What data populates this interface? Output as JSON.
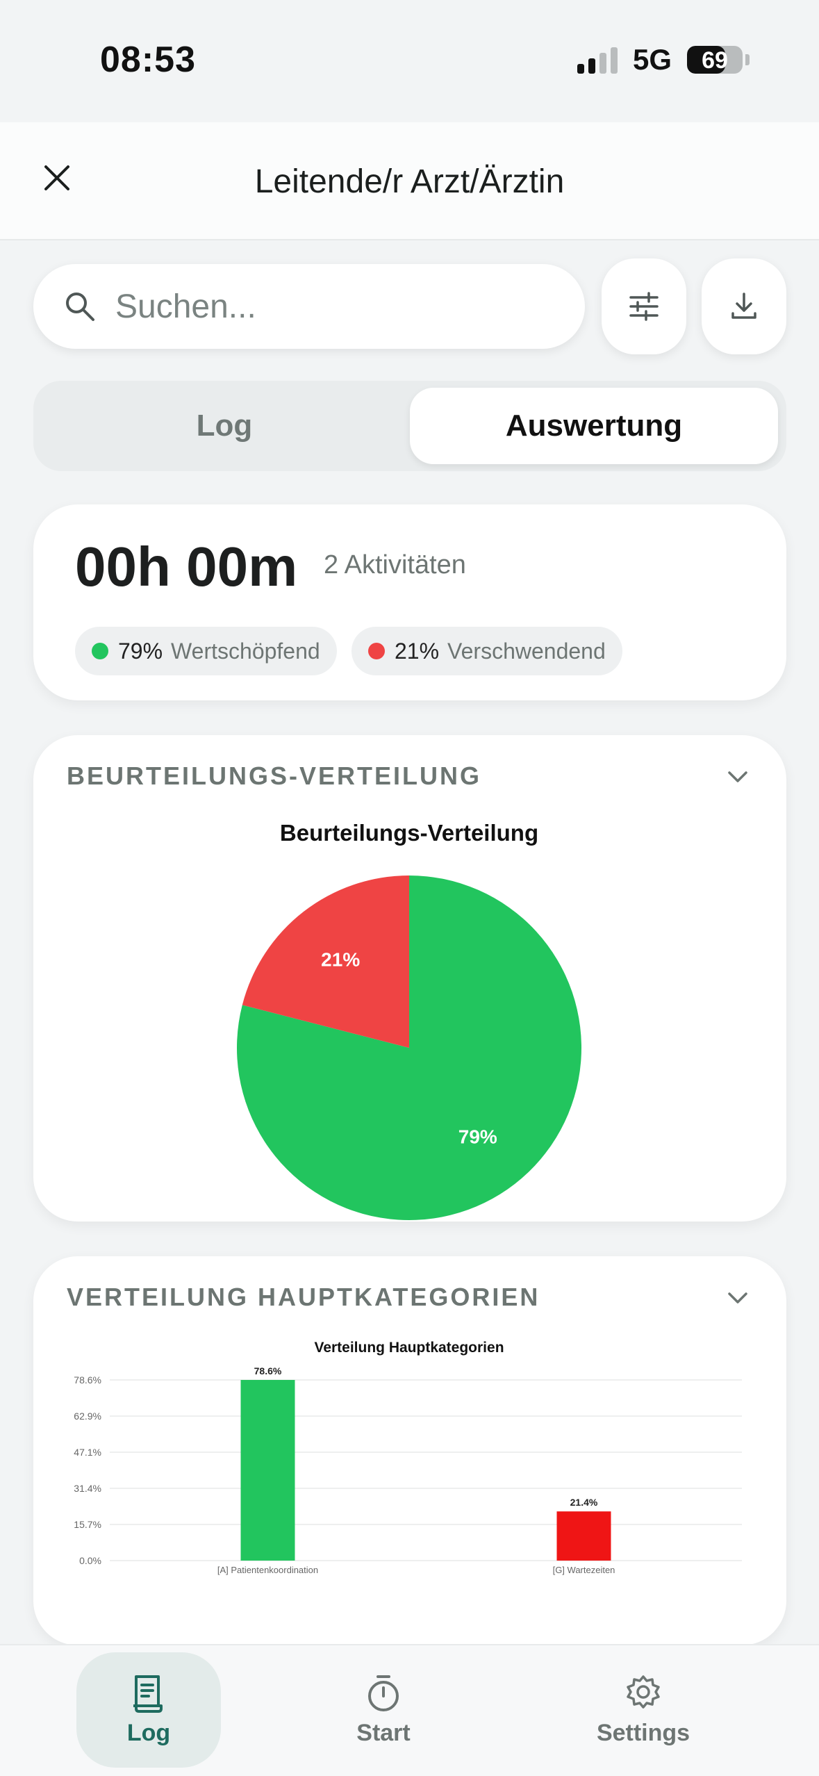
{
  "status_bar": {
    "time": "08:53",
    "network": "5G",
    "battery": "69",
    "battery_level": 0.69
  },
  "header": {
    "title": "Leitende/r Arzt/Ärztin",
    "close_icon": "close-icon"
  },
  "search": {
    "placeholder": "Suchen...",
    "icon": "search-icon"
  },
  "toolbar": {
    "filter_icon": "sliders-icon",
    "download_icon": "download-icon"
  },
  "tabs": [
    {
      "label": "Log",
      "active": false
    },
    {
      "label": "Auswertung",
      "active": true
    }
  ],
  "summary": {
    "duration": "00h 00m",
    "activities": "2 Aktivitäten",
    "pills": [
      {
        "pct": "79%",
        "label": "Wertschöpfend",
        "color": "#22c55e"
      },
      {
        "pct": "21%",
        "label": "Verschwendend",
        "color": "#ef4444"
      }
    ]
  },
  "sections": {
    "beurteilung": {
      "title": "BEURTEILUNGS-VERTEILUNG"
    },
    "haupt": {
      "title": "VERTEILUNG HAUPTKATEGORIEN"
    }
  },
  "nav": [
    {
      "label": "Log",
      "icon": "receipt-icon",
      "active": true
    },
    {
      "label": "Start",
      "icon": "stopwatch-icon",
      "active": false
    },
    {
      "label": "Settings",
      "icon": "gear-icon",
      "active": false
    }
  ],
  "chart_data": [
    {
      "type": "pie",
      "title": "Beurteilungs-Verteilung",
      "categories": [
        "Wertschöpfend",
        "Verschwendend"
      ],
      "values": [
        79,
        21
      ],
      "labels": [
        "79%",
        "21%"
      ],
      "colors": [
        "#22c55e",
        "#ef4444"
      ]
    },
    {
      "type": "bar",
      "title": "Verteilung Hauptkategorien",
      "categories": [
        "[A] Patientenkoordination",
        "[G] Wartezeiten"
      ],
      "values": [
        78.6,
        21.4
      ],
      "labels": [
        "78.6%",
        "21.4%"
      ],
      "colors": [
        "#22c55e",
        "#ef1515"
      ],
      "yticks": [
        "0.0%",
        "15.7%",
        "31.4%",
        "47.1%",
        "62.9%",
        "78.6%"
      ],
      "ylim": [
        0,
        78.6
      ]
    }
  ]
}
